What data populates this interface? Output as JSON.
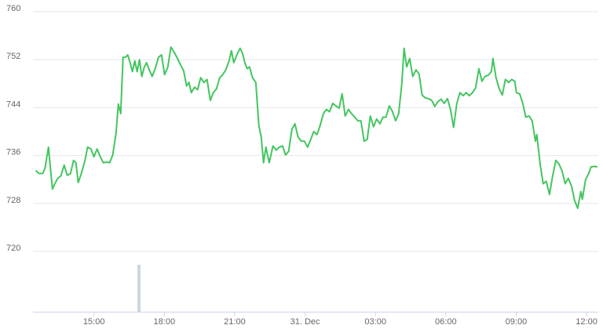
{
  "chart_data": {
    "type": "line",
    "x": [
      12.52,
      12.66,
      12.82,
      12.92,
      13.06,
      13.23,
      13.33,
      13.46,
      13.59,
      13.73,
      13.86,
      14.0,
      14.13,
      14.23,
      14.33,
      14.46,
      14.6,
      14.73,
      14.87,
      15.0,
      15.13,
      15.27,
      15.4,
      15.54,
      15.67,
      15.8,
      15.94,
      16.04,
      16.14,
      16.24,
      16.34,
      16.44,
      16.54,
      16.64,
      16.74,
      16.84,
      16.94,
      17.04,
      17.14,
      17.24,
      17.34,
      17.48,
      17.61,
      17.75,
      17.88,
      18.01,
      18.15,
      18.28,
      18.41,
      18.55,
      18.68,
      18.82,
      18.95,
      19.05,
      19.15,
      19.29,
      19.42,
      19.55,
      19.69,
      19.82,
      19.96,
      20.09,
      20.22,
      20.36,
      20.49,
      20.62,
      20.76,
      20.86,
      20.96,
      21.09,
      21.23,
      21.33,
      21.43,
      21.53,
      21.63,
      21.76,
      21.9,
      22.03,
      22.13,
      22.23,
      22.33,
      22.47,
      22.63,
      22.77,
      22.9,
      23.04,
      23.17,
      23.3,
      23.44,
      23.57,
      23.7,
      23.84,
      23.97,
      24.11,
      24.24,
      24.37,
      24.51,
      24.64,
      24.78,
      24.91,
      25.04,
      25.18,
      25.31,
      25.45,
      25.58,
      25.71,
      25.85,
      25.98,
      26.12,
      26.25,
      26.38,
      26.52,
      26.65,
      26.78,
      26.92,
      27.05,
      27.19,
      27.32,
      27.45,
      27.59,
      27.72,
      27.86,
      27.99,
      28.12,
      28.22,
      28.33,
      28.46,
      28.59,
      28.73,
      28.86,
      28.99,
      29.13,
      29.26,
      29.4,
      29.53,
      29.66,
      29.8,
      29.93,
      30.07,
      30.2,
      30.33,
      30.47,
      30.6,
      30.74,
      30.87,
      31.0,
      31.14,
      31.27,
      31.41,
      31.54,
      31.67,
      31.81,
      31.94,
      32.01,
      32.14,
      32.28,
      32.41,
      32.54,
      32.68,
      32.81,
      32.94,
      33.01,
      33.15,
      33.28,
      33.41,
      33.55,
      33.68,
      33.82,
      33.88,
      34.02,
      34.15,
      34.28,
      34.42,
      34.55,
      34.69,
      34.82,
      34.95,
      35.09,
      35.22,
      35.36,
      35.49,
      35.62,
      35.76,
      35.82,
      35.96,
      36.09,
      36.19,
      36.33,
      36.46
    ],
    "series": [
      {
        "color": "#43c55f",
        "values": [
          733.5,
          733,
          733,
          734,
          737.4,
          730.4,
          731.3,
          732.2,
          732.6,
          734.4,
          732.7,
          733,
          735.2,
          734.8,
          731.5,
          733,
          734.9,
          737.4,
          737.1,
          735.8,
          737.1,
          735.8,
          734.8,
          734.9,
          734.8,
          736.1,
          739.7,
          744.6,
          743,
          752.4,
          752.4,
          752.8,
          751.5,
          750,
          751.8,
          750,
          752,
          749.2,
          750.7,
          751.5,
          750.5,
          749.2,
          750.5,
          752.4,
          752.8,
          749.5,
          750.8,
          754.1,
          753.3,
          752.3,
          751.2,
          750.2,
          747.6,
          748.2,
          746.5,
          747.4,
          747,
          749,
          748.2,
          748.7,
          745.2,
          746.5,
          747.1,
          749,
          749.5,
          750.3,
          751.8,
          753.5,
          751.5,
          752.8,
          753.9,
          753.1,
          751.5,
          750.5,
          750.8,
          749,
          748.2,
          741,
          739.1,
          734.8,
          737.4,
          734.8,
          737.6,
          736.9,
          737.4,
          737.6,
          736.1,
          736.7,
          740.4,
          741.3,
          739.1,
          738.4,
          738.4,
          737.4,
          738.7,
          740,
          739.5,
          741,
          743,
          743.7,
          743.3,
          744.7,
          744.3,
          743.9,
          746.3,
          742.6,
          743.7,
          743,
          742.4,
          741.8,
          741.8,
          738.4,
          738.7,
          742.6,
          740.8,
          742.1,
          741.3,
          742.4,
          742.4,
          744.3,
          743.4,
          741.8,
          743,
          747.8,
          753.9,
          750.8,
          752.2,
          749.2,
          750.3,
          749.6,
          746.1,
          745.6,
          745.5,
          745.2,
          744.2,
          745,
          745.4,
          744.7,
          745.5,
          743.7,
          740.7,
          744.7,
          746.5,
          746,
          746.5,
          746,
          746.5,
          747.3,
          750.5,
          748.4,
          749.2,
          749.4,
          750,
          752.2,
          749,
          747.1,
          746.1,
          748.7,
          748.2,
          748.7,
          748.4,
          746.5,
          746.3,
          744.7,
          742.4,
          742.6,
          741.8,
          738.4,
          739.5,
          734.6,
          731.3,
          731.7,
          729.5,
          732.5,
          735.2,
          734.6,
          733.5,
          731.3,
          732.2,
          730.9,
          728.5,
          727.2,
          730,
          728.7,
          732,
          733,
          734.1,
          734.2,
          734.1
        ]
      }
    ],
    "xlim": [
      12.4,
      36.5
    ],
    "xticks": [
      {
        "value": 15,
        "label": "15:00"
      },
      {
        "value": 18,
        "label": "18:00"
      },
      {
        "value": 21,
        "label": "21:00"
      },
      {
        "value": 24,
        "label": "31. Dec"
      },
      {
        "value": 27,
        "label": "03:00"
      },
      {
        "value": 30,
        "label": "06:00"
      },
      {
        "value": 33,
        "label": "09:00"
      },
      {
        "value": 36,
        "label": "12:00"
      }
    ],
    "ylim": [
      720,
      760
    ],
    "yticks": [
      720,
      728,
      736,
      744,
      752,
      760
    ],
    "grid": true
  }
}
